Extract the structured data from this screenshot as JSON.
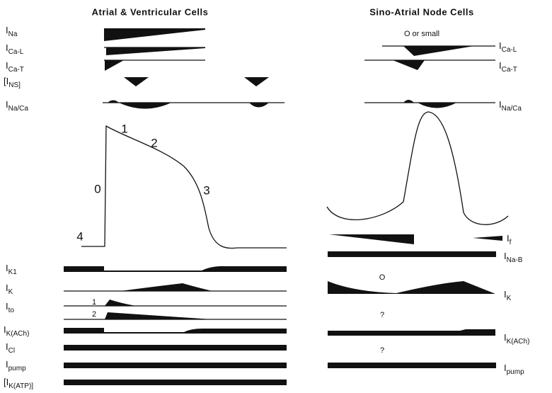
{
  "left": {
    "title": "Atrial & Ventricular Cells",
    "upper_currents": [
      {
        "name": "I",
        "sub": "Na"
      },
      {
        "name": "I",
        "sub": "Ca-L"
      },
      {
        "name": "I",
        "sub": "Ca-T"
      },
      {
        "name": "[I",
        "sub": "NS]"
      },
      {
        "name": "I",
        "sub": "Na/Ca"
      }
    ],
    "phases": [
      "0",
      "1",
      "2",
      "3",
      "4"
    ],
    "lower_currents": [
      {
        "name": "I",
        "sub": "K1"
      },
      {
        "name": "I",
        "sub": "K"
      },
      {
        "name": "I",
        "sub": "to"
      },
      {
        "name": "I",
        "sub": "K(ACh)"
      },
      {
        "name": "I",
        "sub": "Cl"
      },
      {
        "name": "I",
        "sub": "pump"
      },
      {
        "name": "[I",
        "sub": "K(ATP)]"
      }
    ],
    "ito_components": [
      "1",
      "2"
    ]
  },
  "right": {
    "title": "Sino-Atrial Node Cells",
    "upper_currents": [
      {
        "name": "I",
        "sub": "Ca-L"
      },
      {
        "name": "I",
        "sub": "Ca-T"
      },
      {
        "name": "I",
        "sub": "Na/Ca"
      }
    ],
    "lower_currents": [
      {
        "name": "I",
        "sub": "f"
      },
      {
        "name": "I",
        "sub": "Na-B"
      },
      {
        "name": "I",
        "sub": "K"
      },
      {
        "name": "I",
        "sub": "K(ACh)"
      },
      {
        "name": "I",
        "sub": "pump"
      }
    ],
    "annotations": [
      "O or small",
      "O",
      "?",
      "?"
    ]
  }
}
